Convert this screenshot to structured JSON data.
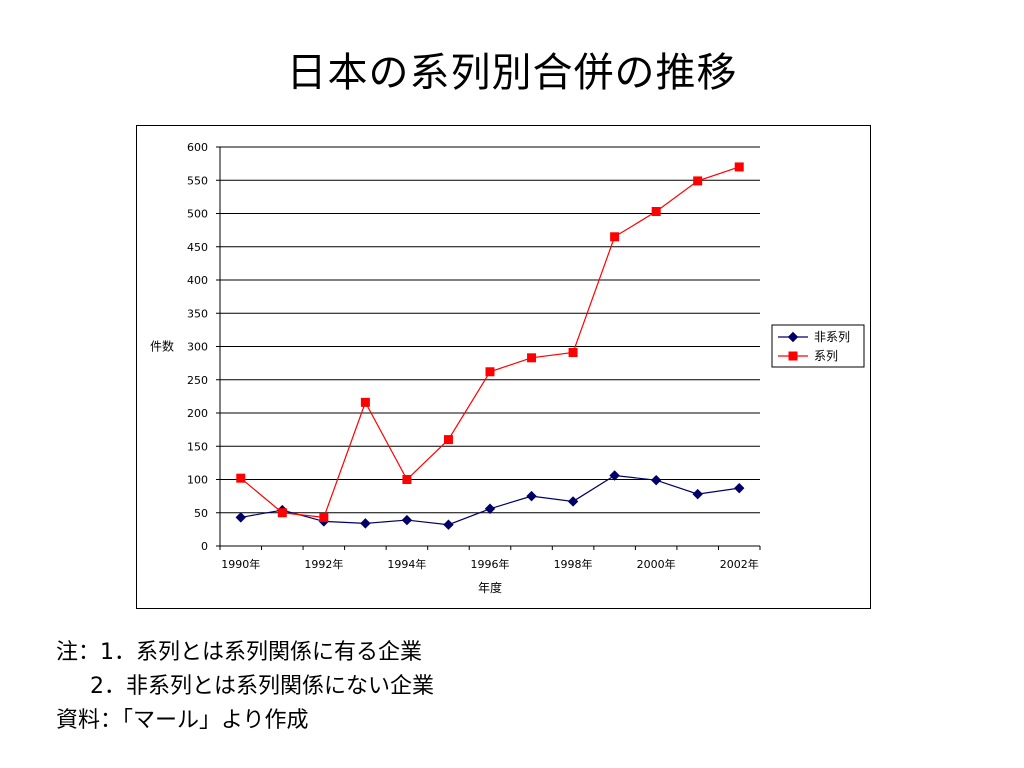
{
  "title": "日本の系列別合併の推移",
  "chart_data": {
    "type": "line",
    "title": "",
    "xlabel": "年度",
    "ylabel": "件数",
    "ylim": [
      0,
      600
    ],
    "yticks": [
      0,
      50,
      100,
      150,
      200,
      250,
      300,
      350,
      400,
      450,
      500,
      550,
      600
    ],
    "x": [
      1990,
      1991,
      1992,
      1993,
      1994,
      1995,
      1996,
      1997,
      1998,
      1999,
      2000,
      2001,
      2002
    ],
    "x_tick_labels": [
      "1990年",
      "1992年",
      "1994年",
      "1996年",
      "1998年",
      "2000年",
      "2002年"
    ],
    "grid": "horizontal",
    "legend_position": "right",
    "series": [
      {
        "name": "非系列",
        "color": "#000066",
        "marker": "diamond",
        "values": [
          43,
          54,
          37,
          34,
          39,
          32,
          56,
          75,
          67,
          106,
          99,
          78,
          87
        ]
      },
      {
        "name": "系列",
        "color": "#ff0000",
        "marker": "square",
        "values": [
          102,
          50,
          43,
          216,
          100,
          160,
          262,
          283,
          291,
          465,
          503,
          549,
          570
        ]
      }
    ]
  },
  "notes": {
    "line1": "注：1．系列とは系列関係に有る企業",
    "line2": "2．非系列とは系列関係にない企業",
    "line3": "資料：「マール」より作成"
  }
}
